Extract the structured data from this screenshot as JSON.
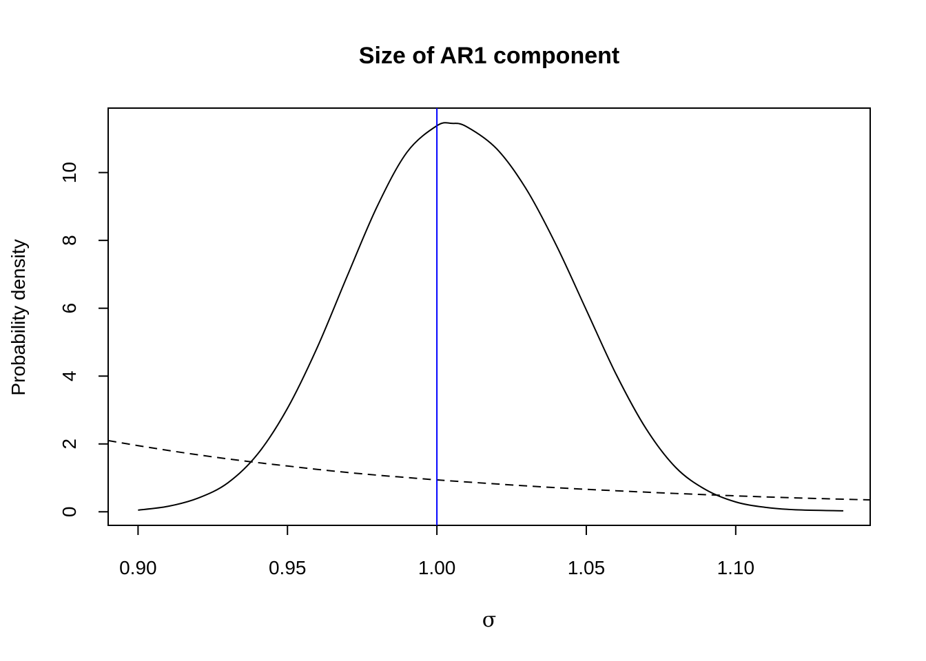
{
  "chart_data": {
    "type": "line",
    "title": "Size of AR1 component",
    "xlabel": "σ",
    "ylabel": "Probability density",
    "xlim": [
      0.89,
      1.145
    ],
    "ylim": [
      -0.4,
      11.9
    ],
    "x_ticks": [
      {
        "value": 0.9,
        "label": "0.90"
      },
      {
        "value": 0.95,
        "label": "0.95"
      },
      {
        "value": 1.0,
        "label": "1.00"
      },
      {
        "value": 1.05,
        "label": "1.05"
      },
      {
        "value": 1.1,
        "label": "1.10"
      }
    ],
    "y_ticks": [
      {
        "value": 0,
        "label": "0"
      },
      {
        "value": 2,
        "label": "2"
      },
      {
        "value": 4,
        "label": "4"
      },
      {
        "value": 6,
        "label": "6"
      },
      {
        "value": 8,
        "label": "8"
      },
      {
        "value": 10,
        "label": "10"
      }
    ],
    "grid": false,
    "series": [
      {
        "style": "solid",
        "color": "#000000",
        "x": [
          0.9,
          0.91,
          0.92,
          0.93,
          0.94,
          0.95,
          0.96,
          0.97,
          0.98,
          0.99,
          1.0,
          1.005,
          1.01,
          1.02,
          1.03,
          1.04,
          1.05,
          1.06,
          1.07,
          1.08,
          1.09,
          1.1,
          1.11,
          1.12,
          1.136
        ],
        "y": [
          0.05,
          0.16,
          0.4,
          0.85,
          1.7,
          3.05,
          4.85,
          6.95,
          9.0,
          10.6,
          11.38,
          11.45,
          11.35,
          10.7,
          9.5,
          7.85,
          5.95,
          4.05,
          2.45,
          1.3,
          0.65,
          0.29,
          0.13,
          0.06,
          0.03
        ]
      },
      {
        "style": "dashed",
        "color": "#000000",
        "x": [
          0.89,
          0.9,
          0.91,
          0.92,
          0.93,
          0.94,
          0.95,
          0.96,
          0.97,
          0.98,
          0.99,
          1.0,
          1.02,
          1.04,
          1.06,
          1.08,
          1.1,
          1.12,
          1.145
        ],
        "y": [
          2.1,
          1.95,
          1.81,
          1.68,
          1.56,
          1.45,
          1.35,
          1.25,
          1.16,
          1.08,
          1.01,
          0.94,
          0.82,
          0.71,
          0.62,
          0.54,
          0.47,
          0.41,
          0.35
        ]
      }
    ],
    "vline": {
      "x": 1.0,
      "color": "#0000ff"
    }
  }
}
